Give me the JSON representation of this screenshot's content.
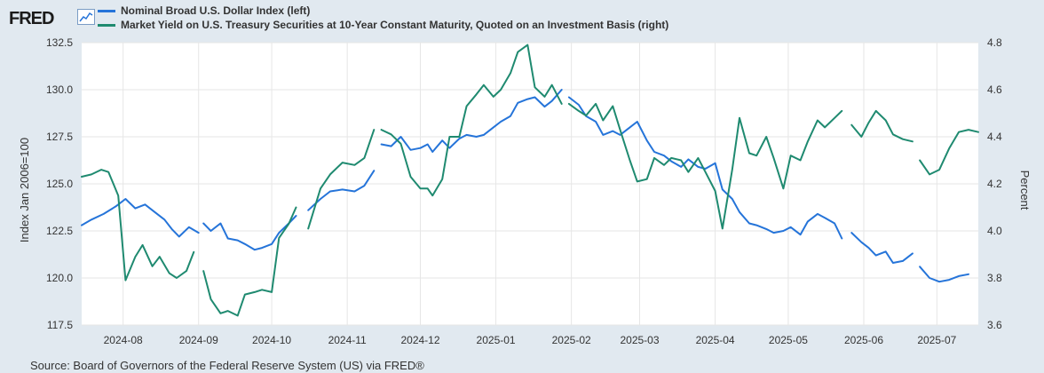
{
  "header": {
    "logo_text": "FRED",
    "logo_icon": "chart-line-icon"
  },
  "legend": {
    "items": [
      {
        "label": "Nominal Broad U.S. Dollar Index (left)",
        "color": "#2574d9"
      },
      {
        "label": "Market Yield on U.S. Treasury Securities at 10-Year Constant Maturity, Quoted on an Investment Basis (right)",
        "color": "#1f8a70"
      }
    ]
  },
  "source": "Source: Board of Governors of the Federal Reserve System (US) via FRED®",
  "chart_data": {
    "type": "line",
    "x_tick_labels": [
      "2024-08",
      "2024-09",
      "2024-10",
      "2024-11",
      "2024-12",
      "2025-01",
      "2025-02",
      "2025-03",
      "2025-04",
      "2025-05",
      "2025-06",
      "2025-07"
    ],
    "x_range": [
      "2024-07-15",
      "2025-07-18"
    ],
    "left_axis": {
      "label": "Index Jan 2006=100",
      "ticks": [
        "117.5",
        "120.0",
        "122.5",
        "125.0",
        "127.5",
        "130.0",
        "132.5"
      ],
      "ylim": [
        117.5,
        132.5
      ]
    },
    "right_axis": {
      "label": "Percent",
      "ticks": [
        "3.6",
        "3.8",
        "4.0",
        "4.2",
        "4.4",
        "4.6",
        "4.8"
      ],
      "ylim": [
        3.6,
        4.8
      ]
    },
    "grid": true,
    "legend_position": "top-left",
    "series": [
      {
        "name": "Nominal Broad U.S. Dollar Index (left)",
        "axis": "left",
        "color": "#2574d9",
        "segments": [
          [
            [
              "2024-07-15",
              122.8
            ],
            [
              "2024-07-19",
              123.1
            ],
            [
              "2024-07-24",
              123.4
            ],
            [
              "2024-07-29",
              123.8
            ],
            [
              "2024-08-02",
              124.2
            ],
            [
              "2024-08-06",
              123.7
            ],
            [
              "2024-08-10",
              123.9
            ],
            [
              "2024-08-14",
              123.5
            ],
            [
              "2024-08-18",
              123.1
            ],
            [
              "2024-08-21",
              122.6
            ],
            [
              "2024-08-24",
              122.2
            ],
            [
              "2024-08-28",
              122.7
            ],
            [
              "2024-09-01",
              122.4
            ]
          ],
          [
            [
              "2024-09-03",
              122.9
            ],
            [
              "2024-09-06",
              122.5
            ],
            [
              "2024-09-10",
              122.9
            ],
            [
              "2024-09-13",
              122.1
            ],
            [
              "2024-09-17",
              122.0
            ],
            [
              "2024-09-20",
              121.8
            ],
            [
              "2024-09-24",
              121.5
            ],
            [
              "2024-09-27",
              121.6
            ],
            [
              "2024-10-01",
              121.8
            ],
            [
              "2024-10-04",
              122.4
            ],
            [
              "2024-10-08",
              122.9
            ],
            [
              "2024-10-11",
              123.3
            ]
          ],
          [
            [
              "2024-10-16",
              123.6
            ],
            [
              "2024-10-21",
              124.2
            ],
            [
              "2024-10-25",
              124.6
            ],
            [
              "2024-10-30",
              124.7
            ],
            [
              "2024-11-04",
              124.6
            ],
            [
              "2024-11-08",
              124.9
            ],
            [
              "2024-11-12",
              125.7
            ]
          ],
          [
            [
              "2024-11-15",
              127.1
            ],
            [
              "2024-11-19",
              127.0
            ],
            [
              "2024-11-23",
              127.5
            ],
            [
              "2024-11-27",
              126.8
            ],
            [
              "2024-12-01",
              126.9
            ],
            [
              "2024-12-04",
              127.1
            ],
            [
              "2024-12-06",
              126.7
            ],
            [
              "2024-12-10",
              127.3
            ],
            [
              "2024-12-13",
              126.9
            ],
            [
              "2024-12-17",
              127.4
            ],
            [
              "2024-12-20",
              127.6
            ],
            [
              "2024-12-24",
              127.5
            ],
            [
              "2024-12-27",
              127.6
            ],
            [
              "2024-12-31",
              128.0
            ],
            [
              "2025-01-03",
              128.3
            ],
            [
              "2025-01-07",
              128.6
            ],
            [
              "2025-01-10",
              129.3
            ],
            [
              "2025-01-14",
              129.5
            ],
            [
              "2025-01-17",
              129.6
            ],
            [
              "2025-01-21",
              129.1
            ],
            [
              "2025-01-24",
              129.4
            ],
            [
              "2025-01-28",
              130.0
            ]
          ],
          [
            [
              "2025-01-31",
              129.6
            ],
            [
              "2025-02-04",
              129.2
            ],
            [
              "2025-02-07",
              128.6
            ],
            [
              "2025-02-11",
              128.3
            ],
            [
              "2025-02-14",
              127.6
            ],
            [
              "2025-02-18",
              127.8
            ],
            [
              "2025-02-21",
              127.6
            ],
            [
              "2025-02-25",
              128.0
            ],
            [
              "2025-02-28",
              128.3
            ],
            [
              "2025-03-04",
              127.3
            ],
            [
              "2025-03-07",
              126.7
            ],
            [
              "2025-03-11",
              126.5
            ],
            [
              "2025-03-14",
              126.2
            ],
            [
              "2025-03-18",
              125.9
            ],
            [
              "2025-03-21",
              126.3
            ],
            [
              "2025-03-25",
              125.9
            ],
            [
              "2025-03-28",
              125.8
            ],
            [
              "2025-04-01",
              126.1
            ],
            [
              "2025-04-04",
              124.7
            ],
            [
              "2025-04-08",
              124.2
            ],
            [
              "2025-04-11",
              123.5
            ],
            [
              "2025-04-15",
              122.9
            ],
            [
              "2025-04-18",
              122.8
            ],
            [
              "2025-04-22",
              122.6
            ],
            [
              "2025-04-25",
              122.4
            ],
            [
              "2025-04-29",
              122.5
            ],
            [
              "2025-05-02",
              122.7
            ],
            [
              "2025-05-06",
              122.3
            ],
            [
              "2025-05-09",
              123.0
            ],
            [
              "2025-05-13",
              123.4
            ],
            [
              "2025-05-16",
              123.2
            ],
            [
              "2025-05-20",
              122.9
            ],
            [
              "2025-05-23",
              122.1
            ]
          ],
          [
            [
              "2025-05-27",
              122.4
            ],
            [
              "2025-05-31",
              121.9
            ],
            [
              "2025-06-03",
              121.6
            ],
            [
              "2025-06-06",
              121.2
            ],
            [
              "2025-06-10",
              121.4
            ],
            [
              "2025-06-13",
              120.8
            ],
            [
              "2025-06-17",
              120.9
            ],
            [
              "2025-06-21",
              121.3
            ]
          ],
          [
            [
              "2025-06-24",
              120.6
            ],
            [
              "2025-06-28",
              120.0
            ],
            [
              "2025-07-02",
              119.8
            ],
            [
              "2025-07-06",
              119.9
            ],
            [
              "2025-07-10",
              120.1
            ],
            [
              "2025-07-14",
              120.2
            ]
          ]
        ]
      },
      {
        "name": "Market Yield on U.S. Treasury Securities at 10-Year Constant Maturity, Quoted on an Investment Basis (right)",
        "axis": "right",
        "color": "#1f8a70",
        "segments": [
          [
            [
              "2024-07-15",
              4.23
            ],
            [
              "2024-07-19",
              4.24
            ],
            [
              "2024-07-23",
              4.26
            ],
            [
              "2024-07-26",
              4.25
            ],
            [
              "2024-07-30",
              4.15
            ],
            [
              "2024-08-02",
              3.79
            ],
            [
              "2024-08-06",
              3.89
            ],
            [
              "2024-08-09",
              3.94
            ],
            [
              "2024-08-13",
              3.85
            ],
            [
              "2024-08-16",
              3.89
            ],
            [
              "2024-08-20",
              3.82
            ],
            [
              "2024-08-23",
              3.8
            ],
            [
              "2024-08-27",
              3.83
            ],
            [
              "2024-08-30",
              3.91
            ]
          ],
          [
            [
              "2024-09-03",
              3.83
            ],
            [
              "2024-09-06",
              3.71
            ],
            [
              "2024-09-10",
              3.65
            ],
            [
              "2024-09-13",
              3.66
            ],
            [
              "2024-09-17",
              3.64
            ],
            [
              "2024-09-20",
              3.73
            ],
            [
              "2024-09-24",
              3.74
            ],
            [
              "2024-09-27",
              3.75
            ],
            [
              "2024-10-01",
              3.74
            ],
            [
              "2024-10-04",
              3.97
            ],
            [
              "2024-10-08",
              4.03
            ],
            [
              "2024-10-11",
              4.1
            ]
          ],
          [
            [
              "2024-10-16",
              4.01
            ],
            [
              "2024-10-21",
              4.18
            ],
            [
              "2024-10-25",
              4.24
            ],
            [
              "2024-10-30",
              4.29
            ],
            [
              "2024-11-04",
              4.28
            ],
            [
              "2024-11-08",
              4.31
            ],
            [
              "2024-11-12",
              4.43
            ]
          ],
          [
            [
              "2024-11-15",
              4.43
            ],
            [
              "2024-11-19",
              4.41
            ],
            [
              "2024-11-23",
              4.37
            ],
            [
              "2024-11-27",
              4.23
            ],
            [
              "2024-12-01",
              4.18
            ],
            [
              "2024-12-04",
              4.18
            ],
            [
              "2024-12-06",
              4.15
            ],
            [
              "2024-12-10",
              4.22
            ],
            [
              "2024-12-13",
              4.4
            ],
            [
              "2024-12-17",
              4.4
            ],
            [
              "2024-12-20",
              4.53
            ],
            [
              "2024-12-24",
              4.58
            ],
            [
              "2024-12-27",
              4.62
            ],
            [
              "2024-12-31",
              4.57
            ],
            [
              "2025-01-03",
              4.6
            ],
            [
              "2025-01-07",
              4.67
            ],
            [
              "2025-01-10",
              4.76
            ],
            [
              "2025-01-14",
              4.79
            ],
            [
              "2025-01-17",
              4.61
            ],
            [
              "2025-01-21",
              4.57
            ],
            [
              "2025-01-24",
              4.62
            ],
            [
              "2025-01-28",
              4.54
            ]
          ],
          [
            [
              "2025-01-31",
              4.54
            ],
            [
              "2025-02-04",
              4.51
            ],
            [
              "2025-02-07",
              4.49
            ],
            [
              "2025-02-11",
              4.54
            ],
            [
              "2025-02-14",
              4.47
            ],
            [
              "2025-02-18",
              4.53
            ],
            [
              "2025-02-21",
              4.43
            ],
            [
              "2025-02-25",
              4.3
            ],
            [
              "2025-02-28",
              4.21
            ],
            [
              "2025-03-04",
              4.22
            ],
            [
              "2025-03-07",
              4.31
            ],
            [
              "2025-03-11",
              4.28
            ],
            [
              "2025-03-14",
              4.31
            ],
            [
              "2025-03-18",
              4.3
            ],
            [
              "2025-03-21",
              4.25
            ],
            [
              "2025-03-25",
              4.31
            ],
            [
              "2025-03-28",
              4.25
            ],
            [
              "2025-04-01",
              4.17
            ],
            [
              "2025-04-04",
              4.01
            ],
            [
              "2025-04-08",
              4.26
            ],
            [
              "2025-04-11",
              4.48
            ],
            [
              "2025-04-15",
              4.33
            ],
            [
              "2025-04-18",
              4.32
            ],
            [
              "2025-04-22",
              4.4
            ],
            [
              "2025-04-25",
              4.31
            ],
            [
              "2025-04-29",
              4.18
            ],
            [
              "2025-05-02",
              4.32
            ],
            [
              "2025-05-06",
              4.3
            ],
            [
              "2025-05-09",
              4.38
            ],
            [
              "2025-05-13",
              4.47
            ],
            [
              "2025-05-16",
              4.44
            ],
            [
              "2025-05-20",
              4.48
            ],
            [
              "2025-05-23",
              4.51
            ]
          ],
          [
            [
              "2025-05-27",
              4.45
            ],
            [
              "2025-05-31",
              4.4
            ],
            [
              "2025-06-03",
              4.46
            ],
            [
              "2025-06-06",
              4.51
            ],
            [
              "2025-06-10",
              4.47
            ],
            [
              "2025-06-13",
              4.41
            ],
            [
              "2025-06-17",
              4.39
            ],
            [
              "2025-06-21",
              4.38
            ]
          ],
          [
            [
              "2025-06-24",
              4.3
            ],
            [
              "2025-06-28",
              4.24
            ],
            [
              "2025-07-02",
              4.26
            ],
            [
              "2025-07-06",
              4.35
            ],
            [
              "2025-07-10",
              4.42
            ],
            [
              "2025-07-14",
              4.43
            ],
            [
              "2025-07-18",
              4.42
            ]
          ]
        ]
      }
    ]
  }
}
